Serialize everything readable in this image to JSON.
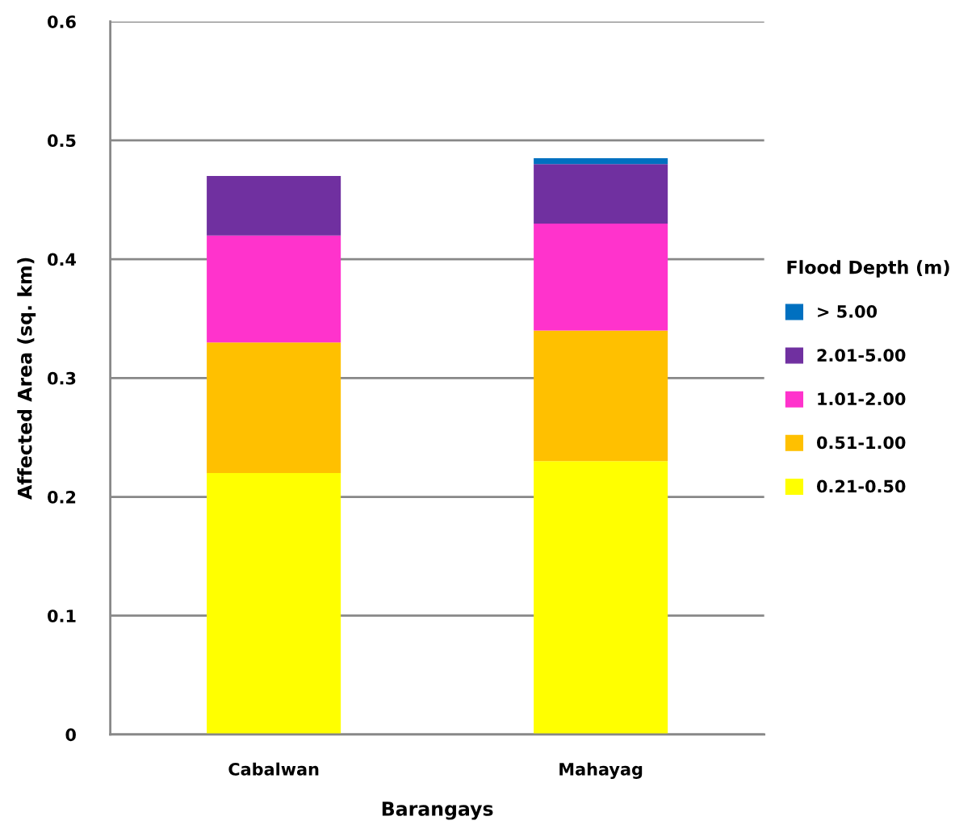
{
  "chart_data": {
    "type": "bar",
    "stacked": true,
    "xlabel": "Barangays",
    "ylabel": "Affected Area (sq. km)",
    "legend_title": "Flood Depth (m)",
    "categories": [
      "Cabalwan",
      "Mahayag"
    ],
    "series": [
      {
        "name": "0.21-0.50",
        "color": "#ffff00",
        "values": [
          0.22,
          0.23
        ]
      },
      {
        "name": "0.51-1.00",
        "color": "#ffc000",
        "values": [
          0.11,
          0.11
        ]
      },
      {
        "name": "1.01-2.00",
        "color": "#ff33cc",
        "values": [
          0.09,
          0.09
        ]
      },
      {
        "name": "2.01-5.00",
        "color": "#7030a0",
        "values": [
          0.05,
          0.05
        ]
      },
      {
        "name": "> 5.00",
        "color": "#0070c0",
        "values": [
          0,
          0.005
        ]
      }
    ],
    "ylim": [
      0,
      0.6
    ],
    "yticks": [
      0,
      0.1,
      0.2,
      0.3,
      0.4,
      0.5,
      0.6
    ],
    "grid": "y",
    "legend": "right"
  }
}
